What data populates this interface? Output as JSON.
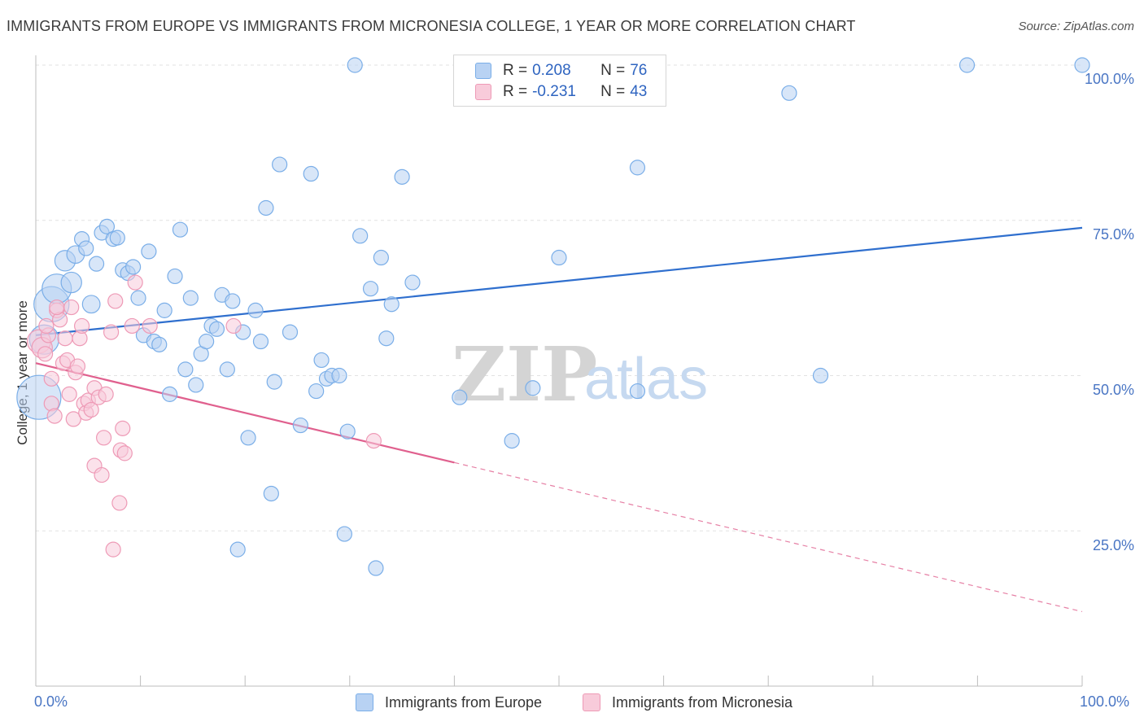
{
  "title": "IMMIGRANTS FROM EUROPE VS IMMIGRANTS FROM MICRONESIA COLLEGE, 1 YEAR OR MORE CORRELATION CHART",
  "source": "Source: ZipAtlas.com",
  "legend": {
    "europe": {
      "r_label": "R = ",
      "r_value": "0.208",
      "n_label": "N = ",
      "n_value": "76"
    },
    "micronesia": {
      "r_label": "R = ",
      "r_value": "-0.231",
      "n_label": "N = ",
      "n_value": "43"
    }
  },
  "chart_data": {
    "type": "scatter",
    "title": "IMMIGRANTS FROM EUROPE VS IMMIGRANTS FROM MICRONESIA COLLEGE, 1 YEAR OR MORE CORRELATION CHART",
    "xlabel": "",
    "ylabel": "College, 1 year or more",
    "xlim": [
      0,
      100
    ],
    "ylim": [
      0,
      100
    ],
    "x_tick_labels": [
      "0.0%",
      "100.0%"
    ],
    "y_tick_labels": [
      {
        "value": 100,
        "label": "100.0%"
      },
      {
        "value": 75,
        "label": "75.0%"
      },
      {
        "value": 50,
        "label": "50.0%"
      },
      {
        "value": 25,
        "label": "25.0%"
      }
    ],
    "watermark": {
      "zip": "ZIP",
      "atlas": "atlas"
    },
    "series": [
      {
        "name": "Immigrants from Europe",
        "color": "#7aaee8",
        "fill": "#b8d2f3",
        "line_color": "#2f6fce",
        "trend": {
          "x0": 0,
          "y0": 56.5,
          "x1": 100,
          "y1": 73.8,
          "solid_to": 100
        },
        "points": [
          {
            "x": 0.3,
            "y": 46.5,
            "s": 3
          },
          {
            "x": 0.8,
            "y": 55.8,
            "s": 2
          },
          {
            "x": 1.5,
            "y": 61.5,
            "s": 2.4
          },
          {
            "x": 2,
            "y": 64,
            "s": 2
          },
          {
            "x": 2.8,
            "y": 68.5,
            "s": 1.4
          },
          {
            "x": 3.4,
            "y": 65,
            "s": 1.4
          },
          {
            "x": 3.8,
            "y": 69.5,
            "s": 1.2
          },
          {
            "x": 4.4,
            "y": 72
          },
          {
            "x": 4.8,
            "y": 70.5
          },
          {
            "x": 5.3,
            "y": 61.5,
            "s": 1.2
          },
          {
            "x": 5.8,
            "y": 68
          },
          {
            "x": 6.3,
            "y": 73
          },
          {
            "x": 6.8,
            "y": 74
          },
          {
            "x": 7.4,
            "y": 72
          },
          {
            "x": 7.8,
            "y": 72.2
          },
          {
            "x": 8.3,
            "y": 67
          },
          {
            "x": 8.8,
            "y": 66.5
          },
          {
            "x": 9.3,
            "y": 67.5
          },
          {
            "x": 9.8,
            "y": 62.5
          },
          {
            "x": 10.3,
            "y": 56.5
          },
          {
            "x": 10.8,
            "y": 70
          },
          {
            "x": 11.3,
            "y": 55.5
          },
          {
            "x": 11.8,
            "y": 55
          },
          {
            "x": 12.3,
            "y": 60.5
          },
          {
            "x": 12.8,
            "y": 47
          },
          {
            "x": 13.3,
            "y": 66
          },
          {
            "x": 13.8,
            "y": 73.5
          },
          {
            "x": 14.3,
            "y": 51
          },
          {
            "x": 14.8,
            "y": 62.5
          },
          {
            "x": 15.3,
            "y": 48.5
          },
          {
            "x": 15.8,
            "y": 53.5
          },
          {
            "x": 16.3,
            "y": 55.5
          },
          {
            "x": 16.8,
            "y": 58
          },
          {
            "x": 17.3,
            "y": 57.5
          },
          {
            "x": 17.8,
            "y": 63
          },
          {
            "x": 18.3,
            "y": 51
          },
          {
            "x": 18.8,
            "y": 62
          },
          {
            "x": 19.3,
            "y": 22
          },
          {
            "x": 19.8,
            "y": 57
          },
          {
            "x": 20.3,
            "y": 40
          },
          {
            "x": 21,
            "y": 60.5
          },
          {
            "x": 21.5,
            "y": 55.5
          },
          {
            "x": 22,
            "y": 77
          },
          {
            "x": 22.5,
            "y": 31
          },
          {
            "x": 22.8,
            "y": 49
          },
          {
            "x": 23.3,
            "y": 84
          },
          {
            "x": 24.3,
            "y": 57
          },
          {
            "x": 25.3,
            "y": 42
          },
          {
            "x": 26.3,
            "y": 82.5
          },
          {
            "x": 26.8,
            "y": 47.5
          },
          {
            "x": 27.3,
            "y": 52.5
          },
          {
            "x": 27.8,
            "y": 49.5
          },
          {
            "x": 28.3,
            "y": 50
          },
          {
            "x": 29,
            "y": 50
          },
          {
            "x": 29.5,
            "y": 24.5
          },
          {
            "x": 29.8,
            "y": 41
          },
          {
            "x": 30.5,
            "y": 100
          },
          {
            "x": 31,
            "y": 72.5
          },
          {
            "x": 32,
            "y": 64
          },
          {
            "x": 32.5,
            "y": 19
          },
          {
            "x": 33,
            "y": 69
          },
          {
            "x": 33.5,
            "y": 56
          },
          {
            "x": 34,
            "y": 61.5
          },
          {
            "x": 35,
            "y": 82
          },
          {
            "x": 36,
            "y": 65
          },
          {
            "x": 40.5,
            "y": 46.5
          },
          {
            "x": 45.5,
            "y": 39.5
          },
          {
            "x": 47.5,
            "y": 48
          },
          {
            "x": 50,
            "y": 69
          },
          {
            "x": 57.5,
            "y": 47.5
          },
          {
            "x": 57.5,
            "y": 83.5
          },
          {
            "x": 72,
            "y": 95.5
          },
          {
            "x": 75,
            "y": 50
          },
          {
            "x": 89,
            "y": 100
          },
          {
            "x": 100,
            "y": 100
          }
        ]
      },
      {
        "name": "Immigrants from Micronesia",
        "color": "#ee9ab6",
        "fill": "#f8cbda",
        "line_color": "#e0608e",
        "trend": {
          "x0": 0,
          "y0": 52.0,
          "x1": 100,
          "y1": 12.0,
          "solid_to": 40
        },
        "points": [
          {
            "x": 0.3,
            "y": 55.5,
            "s": 1.6
          },
          {
            "x": 0.6,
            "y": 54.5,
            "s": 1.4
          },
          {
            "x": 0.9,
            "y": 53.5
          },
          {
            "x": 1.2,
            "y": 56.5
          },
          {
            "x": 1.5,
            "y": 49.5
          },
          {
            "x": 1.5,
            "y": 45.5
          },
          {
            "x": 1.8,
            "y": 43.5
          },
          {
            "x": 2,
            "y": 60.5
          },
          {
            "x": 2.3,
            "y": 59
          },
          {
            "x": 2.6,
            "y": 52
          },
          {
            "x": 2.8,
            "y": 56
          },
          {
            "x": 3,
            "y": 52.5
          },
          {
            "x": 3.2,
            "y": 47
          },
          {
            "x": 3.4,
            "y": 61
          },
          {
            "x": 3.6,
            "y": 43
          },
          {
            "x": 3.8,
            "y": 50.5
          },
          {
            "x": 4.0,
            "y": 51.5
          },
          {
            "x": 4.2,
            "y": 56
          },
          {
            "x": 4.4,
            "y": 58
          },
          {
            "x": 4.6,
            "y": 45.5
          },
          {
            "x": 4.8,
            "y": 44
          },
          {
            "x": 5.0,
            "y": 46
          },
          {
            "x": 5.3,
            "y": 44.5
          },
          {
            "x": 5.6,
            "y": 48
          },
          {
            "x": 5.6,
            "y": 35.5
          },
          {
            "x": 6.0,
            "y": 46.5
          },
          {
            "x": 6.3,
            "y": 34
          },
          {
            "x": 6.5,
            "y": 40
          },
          {
            "x": 6.7,
            "y": 47
          },
          {
            "x": 7.2,
            "y": 57
          },
          {
            "x": 7.4,
            "y": 22
          },
          {
            "x": 7.6,
            "y": 62
          },
          {
            "x": 8.0,
            "y": 29.5
          },
          {
            "x": 8.1,
            "y": 38
          },
          {
            "x": 8.3,
            "y": 41.5
          },
          {
            "x": 8.5,
            "y": 37.5
          },
          {
            "x": 9.2,
            "y": 58
          },
          {
            "x": 9.5,
            "y": 65
          },
          {
            "x": 10.9,
            "y": 58
          },
          {
            "x": 18.9,
            "y": 58
          },
          {
            "x": 32.3,
            "y": 39.5
          },
          {
            "x": 2.0,
            "y": 61
          },
          {
            "x": 1.0,
            "y": 58
          }
        ]
      }
    ]
  },
  "bottom_legend": {
    "europe_label": "Immigrants from Europe",
    "micronesia_label": "Immigrants from Micronesia"
  }
}
